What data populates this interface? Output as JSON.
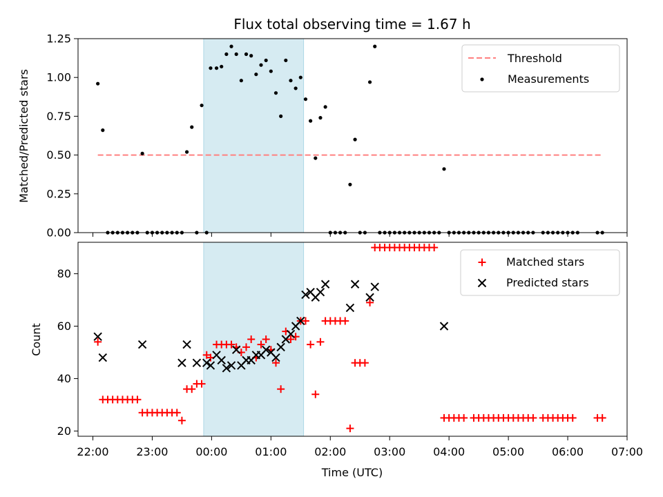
{
  "chart_data": [
    {
      "type": "scatter",
      "title": "Flux total observing time = 1.67 h",
      "ylabel": "Matched/Predicted stars",
      "ylim": [
        0,
        1.25
      ],
      "xlim": [
        "21:45",
        "07:00"
      ],
      "yticks": [
        0,
        0.25,
        0.5,
        0.75,
        1.0,
        1.25
      ],
      "ytick_labels": [
        "0.00",
        "0.25",
        "0.50",
        "0.75",
        "1.00",
        "1.25"
      ],
      "shaded_span": [
        "23:52",
        "01:33"
      ],
      "shade_color": "#add8e6",
      "legend_position": "top-right",
      "series": [
        {
          "name": "Threshold",
          "style": "dashed-line",
          "color": "#ff7f7f",
          "points": [
            [
              "22:05",
              0.5
            ],
            [
              "06:35",
              0.5
            ]
          ]
        },
        {
          "name": "Measurements",
          "style": "dot",
          "color": "#000000",
          "points": [
            [
              "22:05",
              0.96
            ],
            [
              "22:10",
              0.66
            ],
            [
              "22:15",
              0.0
            ],
            [
              "22:20",
              0.0
            ],
            [
              "22:25",
              0.0
            ],
            [
              "22:30",
              0.0
            ],
            [
              "22:35",
              0.0
            ],
            [
              "22:40",
              0.0
            ],
            [
              "22:45",
              0.0
            ],
            [
              "22:50",
              0.51
            ],
            [
              "22:55",
              0.0
            ],
            [
              "23:00",
              0.0
            ],
            [
              "23:05",
              0.0
            ],
            [
              "23:10",
              0.0
            ],
            [
              "23:15",
              0.0
            ],
            [
              "23:20",
              0.0
            ],
            [
              "23:25",
              0.0
            ],
            [
              "23:30",
              0.0
            ],
            [
              "23:35",
              0.52
            ],
            [
              "23:40",
              0.68
            ],
            [
              "23:45",
              0.0
            ],
            [
              "23:50",
              0.82
            ],
            [
              "23:55",
              0.0
            ],
            [
              "23:59",
              1.06
            ],
            [
              "00:05",
              1.06
            ],
            [
              "00:10",
              1.07
            ],
            [
              "00:15",
              1.15
            ],
            [
              "00:20",
              1.2
            ],
            [
              "00:25",
              1.15
            ],
            [
              "00:30",
              0.98
            ],
            [
              "00:35",
              1.15
            ],
            [
              "00:40",
              1.14
            ],
            [
              "00:45",
              1.02
            ],
            [
              "00:50",
              1.08
            ],
            [
              "00:55",
              1.11
            ],
            [
              "01:00",
              1.04
            ],
            [
              "01:05",
              0.9
            ],
            [
              "01:10",
              0.75
            ],
            [
              "01:15",
              1.11
            ],
            [
              "01:20",
              0.98
            ],
            [
              "01:25",
              0.93
            ],
            [
              "01:30",
              1.0
            ],
            [
              "01:35",
              0.86
            ],
            [
              "01:40",
              0.72
            ],
            [
              "01:45",
              0.48
            ],
            [
              "01:50",
              0.74
            ],
            [
              "01:55",
              0.81
            ],
            [
              "02:00",
              0.0
            ],
            [
              "02:05",
              0.0
            ],
            [
              "02:10",
              0.0
            ],
            [
              "02:15",
              0.0
            ],
            [
              "02:20",
              0.31
            ],
            [
              "02:25",
              0.6
            ],
            [
              "02:30",
              0.0
            ],
            [
              "02:35",
              0.0
            ],
            [
              "02:40",
              0.97
            ],
            [
              "02:45",
              1.2
            ],
            [
              "02:50",
              0.0
            ],
            [
              "02:55",
              0.0
            ],
            [
              "03:00",
              0.0
            ],
            [
              "03:05",
              0.0
            ],
            [
              "03:10",
              0.0
            ],
            [
              "03:15",
              0.0
            ],
            [
              "03:20",
              0.0
            ],
            [
              "03:25",
              0.0
            ],
            [
              "03:30",
              0.0
            ],
            [
              "03:35",
              0.0
            ],
            [
              "03:40",
              0.0
            ],
            [
              "03:45",
              0.0
            ],
            [
              "03:50",
              0.0
            ],
            [
              "03:55",
              0.41
            ],
            [
              "04:00",
              0.0
            ],
            [
              "04:05",
              0.0
            ],
            [
              "04:10",
              0.0
            ],
            [
              "04:15",
              0.0
            ],
            [
              "04:20",
              0.0
            ],
            [
              "04:25",
              0.0
            ],
            [
              "04:30",
              0.0
            ],
            [
              "04:35",
              0.0
            ],
            [
              "04:40",
              0.0
            ],
            [
              "04:45",
              0.0
            ],
            [
              "04:50",
              0.0
            ],
            [
              "04:55",
              0.0
            ],
            [
              "05:00",
              0.0
            ],
            [
              "05:05",
              0.0
            ],
            [
              "05:10",
              0.0
            ],
            [
              "05:15",
              0.0
            ],
            [
              "05:20",
              0.0
            ],
            [
              "05:25",
              0.0
            ],
            [
              "05:35",
              0.0
            ],
            [
              "05:40",
              0.0
            ],
            [
              "05:45",
              0.0
            ],
            [
              "05:50",
              0.0
            ],
            [
              "05:55",
              0.0
            ],
            [
              "06:00",
              0.0
            ],
            [
              "06:05",
              0.0
            ],
            [
              "06:10",
              0.0
            ],
            [
              "06:30",
              0.0
            ],
            [
              "06:35",
              0.0
            ]
          ]
        }
      ]
    },
    {
      "type": "scatter",
      "xlabel": "Time (UTC)",
      "ylabel": "Count",
      "ylim": [
        18,
        92
      ],
      "xlim": [
        "21:45",
        "07:00"
      ],
      "yticks": [
        20,
        40,
        60,
        80
      ],
      "ytick_labels": [
        "20",
        "40",
        "60",
        "80"
      ],
      "xticks": [
        "22:00",
        "23:00",
        "00:00",
        "01:00",
        "02:00",
        "03:00",
        "04:00",
        "05:00",
        "06:00",
        "07:00"
      ],
      "shaded_span": [
        "23:52",
        "01:33"
      ],
      "shade_color": "#add8e6",
      "legend_position": "top-right",
      "series": [
        {
          "name": "Matched stars",
          "style": "plus",
          "color": "#ff0000",
          "points": [
            [
              "22:05",
              54
            ],
            [
              "22:10",
              32
            ],
            [
              "22:15",
              32
            ],
            [
              "22:20",
              32
            ],
            [
              "22:25",
              32
            ],
            [
              "22:30",
              32
            ],
            [
              "22:35",
              32
            ],
            [
              "22:40",
              32
            ],
            [
              "22:45",
              32
            ],
            [
              "22:50",
              27
            ],
            [
              "22:55",
              27
            ],
            [
              "23:00",
              27
            ],
            [
              "23:05",
              27
            ],
            [
              "23:10",
              27
            ],
            [
              "23:15",
              27
            ],
            [
              "23:20",
              27
            ],
            [
              "23:25",
              27
            ],
            [
              "23:30",
              24
            ],
            [
              "23:35",
              36
            ],
            [
              "23:40",
              36
            ],
            [
              "23:45",
              38
            ],
            [
              "23:50",
              38
            ],
            [
              "23:55",
              49
            ],
            [
              "23:59",
              48
            ],
            [
              "00:05",
              53
            ],
            [
              "00:10",
              53
            ],
            [
              "00:15",
              53
            ],
            [
              "00:20",
              53
            ],
            [
              "00:25",
              52
            ],
            [
              "00:30",
              50
            ],
            [
              "00:35",
              52
            ],
            [
              "00:40",
              55
            ],
            [
              "00:45",
              48
            ],
            [
              "00:50",
              53
            ],
            [
              "00:55",
              55
            ],
            [
              "01:00",
              51
            ],
            [
              "01:05",
              46
            ],
            [
              "01:10",
              36
            ],
            [
              "01:15",
              58
            ],
            [
              "01:20",
              55
            ],
            [
              "01:25",
              56
            ],
            [
              "01:30",
              62
            ],
            [
              "01:35",
              62
            ],
            [
              "01:40",
              53
            ],
            [
              "01:45",
              34
            ],
            [
              "01:50",
              54
            ],
            [
              "01:55",
              62
            ],
            [
              "02:00",
              62
            ],
            [
              "02:05",
              62
            ],
            [
              "02:10",
              62
            ],
            [
              "02:15",
              62
            ],
            [
              "02:20",
              21
            ],
            [
              "02:25",
              46
            ],
            [
              "02:30",
              46
            ],
            [
              "02:35",
              46
            ],
            [
              "02:40",
              69
            ],
            [
              "02:45",
              90
            ],
            [
              "02:50",
              90
            ],
            [
              "02:55",
              90
            ],
            [
              "03:00",
              90
            ],
            [
              "03:05",
              90
            ],
            [
              "03:10",
              90
            ],
            [
              "03:15",
              90
            ],
            [
              "03:20",
              90
            ],
            [
              "03:25",
              90
            ],
            [
              "03:30",
              90
            ],
            [
              "03:35",
              90
            ],
            [
              "03:40",
              90
            ],
            [
              "03:45",
              90
            ],
            [
              "03:55",
              25
            ],
            [
              "04:00",
              25
            ],
            [
              "04:05",
              25
            ],
            [
              "04:10",
              25
            ],
            [
              "04:15",
              25
            ],
            [
              "04:25",
              25
            ],
            [
              "04:30",
              25
            ],
            [
              "04:35",
              25
            ],
            [
              "04:40",
              25
            ],
            [
              "04:45",
              25
            ],
            [
              "04:50",
              25
            ],
            [
              "04:55",
              25
            ],
            [
              "05:00",
              25
            ],
            [
              "05:05",
              25
            ],
            [
              "05:10",
              25
            ],
            [
              "05:15",
              25
            ],
            [
              "05:20",
              25
            ],
            [
              "05:25",
              25
            ],
            [
              "05:35",
              25
            ],
            [
              "05:40",
              25
            ],
            [
              "05:45",
              25
            ],
            [
              "05:50",
              25
            ],
            [
              "05:55",
              25
            ],
            [
              "06:00",
              25
            ],
            [
              "06:05",
              25
            ],
            [
              "06:30",
              25
            ],
            [
              "06:35",
              25
            ]
          ]
        },
        {
          "name": "Predicted stars",
          "style": "x",
          "color": "#000000",
          "points": [
            [
              "22:05",
              56
            ],
            [
              "22:10",
              48
            ],
            [
              "22:50",
              53
            ],
            [
              "23:30",
              46
            ],
            [
              "23:35",
              53
            ],
            [
              "23:45",
              46
            ],
            [
              "23:55",
              46
            ],
            [
              "23:59",
              45
            ],
            [
              "00:05",
              49
            ],
            [
              "00:10",
              47
            ],
            [
              "00:15",
              44
            ],
            [
              "00:20",
              45
            ],
            [
              "00:25",
              51
            ],
            [
              "00:30",
              45
            ],
            [
              "00:35",
              47
            ],
            [
              "00:40",
              47
            ],
            [
              "00:45",
              49
            ],
            [
              "00:50",
              49
            ],
            [
              "00:55",
              51
            ],
            [
              "01:00",
              50
            ],
            [
              "01:05",
              48
            ],
            [
              "01:10",
              52
            ],
            [
              "01:15",
              55
            ],
            [
              "01:20",
              57
            ],
            [
              "01:25",
              60
            ],
            [
              "01:30",
              62
            ],
            [
              "01:35",
              72
            ],
            [
              "01:40",
              73
            ],
            [
              "01:45",
              71
            ],
            [
              "01:50",
              73
            ],
            [
              "01:55",
              76
            ],
            [
              "02:20",
              67
            ],
            [
              "02:25",
              76
            ],
            [
              "02:40",
              71
            ],
            [
              "02:45",
              75
            ],
            [
              "03:55",
              60
            ]
          ]
        }
      ]
    }
  ]
}
